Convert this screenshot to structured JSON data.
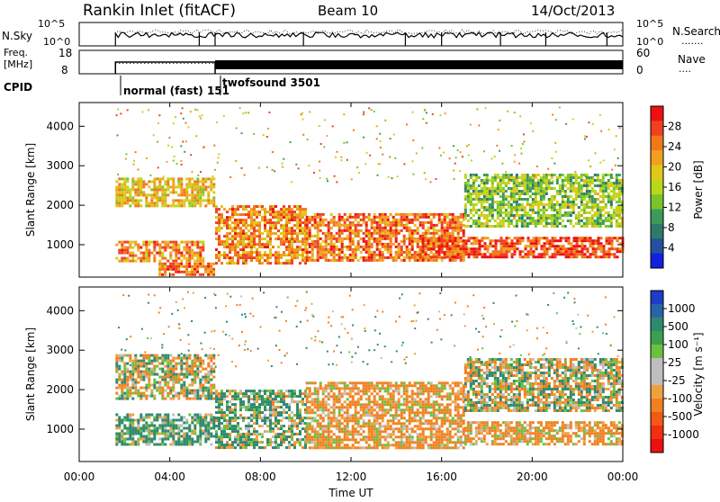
{
  "header": {
    "station": "Rankin Inlet (fitACF)",
    "beam": "Beam 10",
    "date": "14/Oct/2013"
  },
  "noise_panel": {
    "label": "N.Sky",
    "left_ticks": [
      "10^5",
      "10^0"
    ],
    "right_ticks": [
      "10^5",
      "10^0"
    ],
    "right_label": "N.Search",
    "right_legend_symbol": "......."
  },
  "freq_panel": {
    "label_line1": "Freq.",
    "label_line2": "[MHz]",
    "left_ticks": [
      "18",
      "8"
    ],
    "right_ticks": [
      "60",
      "0"
    ],
    "right_label": "Nave",
    "right_legend_symbol": "...."
  },
  "cpid": {
    "label": "CPID",
    "modes": [
      "normal (fast) 151",
      "twofsound 3501"
    ]
  },
  "power_panel": {
    "ylabel": "Slant Range [km]",
    "yticks": [
      "4000",
      "3000",
      "2000",
      "1000"
    ],
    "colorbar_label": "Power [dB]",
    "colorbar_ticks": [
      "28",
      "24",
      "20",
      "16",
      "12",
      "8",
      "4"
    ],
    "colorbar_colors": [
      "#ee1111",
      "#f04020",
      "#f07818",
      "#f0a020",
      "#e0c818",
      "#b8d818",
      "#7ac42a",
      "#3c9a5a",
      "#2e7a6a",
      "#2450a0",
      "#1420e0"
    ]
  },
  "velocity_panel": {
    "ylabel": "Slant Range [km]",
    "yticks": [
      "4000",
      "3000",
      "2000",
      "1000"
    ],
    "colorbar_label": "Velocity [m s⁻¹]",
    "colorbar_ticks": [
      "1000",
      "500",
      "100",
      "25",
      "-25",
      "-100",
      "-500",
      "-1000"
    ],
    "colorbar_colors": [
      "#1e3cc8",
      "#2a64a8",
      "#2e8a6e",
      "#3ca050",
      "#6cc040",
      "#bebebe",
      "#bebebe",
      "#f0a040",
      "#f08020",
      "#f05a14",
      "#f03010",
      "#ee1010"
    ]
  },
  "xaxis": {
    "label": "Time UT",
    "ticks": [
      "00:00",
      "04:00",
      "08:00",
      "12:00",
      "16:00",
      "20:00",
      "00:00"
    ]
  },
  "chart_data": [
    {
      "type": "heatmap",
      "title": "Power",
      "xlabel": "Time UT",
      "ylabel": "Slant Range [km]",
      "xlim": [
        0,
        24
      ],
      "ylim": [
        180,
        4600
      ],
      "colorbar": {
        "label": "Power [dB]",
        "range": [
          0,
          32
        ]
      },
      "bands": [
        {
          "t": [
            1.6,
            6.0
          ],
          "r": [
            2000,
            2700
          ],
          "v": 20
        },
        {
          "t": [
            1.6,
            5.5
          ],
          "r": [
            600,
            1100
          ],
          "v": 24
        },
        {
          "t": [
            3.5,
            6.0
          ],
          "r": [
            250,
            550
          ],
          "v": 26
        },
        {
          "t": [
            6.0,
            10.0
          ],
          "r": [
            500,
            2000
          ],
          "v": 24
        },
        {
          "t": [
            10.0,
            17.0
          ],
          "r": [
            600,
            1800
          ],
          "v": 26
        },
        {
          "t": [
            15.0,
            24.0
          ],
          "r": [
            700,
            1200
          ],
          "v": 28
        },
        {
          "t": [
            17.0,
            24.0
          ],
          "r": [
            1500,
            2800
          ],
          "v": 14
        }
      ]
    },
    {
      "type": "heatmap",
      "title": "Velocity",
      "xlabel": "Time UT",
      "ylabel": "Slant Range [km]",
      "xlim": [
        0,
        24
      ],
      "ylim": [
        180,
        4600
      ],
      "colorbar": {
        "label": "Velocity [m s⁻¹]",
        "range": [
          -1000,
          1000
        ]
      },
      "bands": [
        {
          "t": [
            1.6,
            6.0
          ],
          "r": [
            1800,
            2900
          ],
          "v": 0
        },
        {
          "t": [
            1.6,
            6.0
          ],
          "r": [
            600,
            1400
          ],
          "v": 150
        },
        {
          "t": [
            6.0,
            10.0
          ],
          "r": [
            500,
            2000
          ],
          "v": 120
        },
        {
          "t": [
            10.0,
            17.0
          ],
          "r": [
            500,
            2200
          ],
          "v": -150
        },
        {
          "t": [
            17.0,
            24.0
          ],
          "r": [
            1500,
            2800
          ],
          "v": 0
        },
        {
          "t": [
            17.0,
            24.0
          ],
          "r": [
            600,
            1200
          ],
          "v": -150
        }
      ]
    }
  ]
}
